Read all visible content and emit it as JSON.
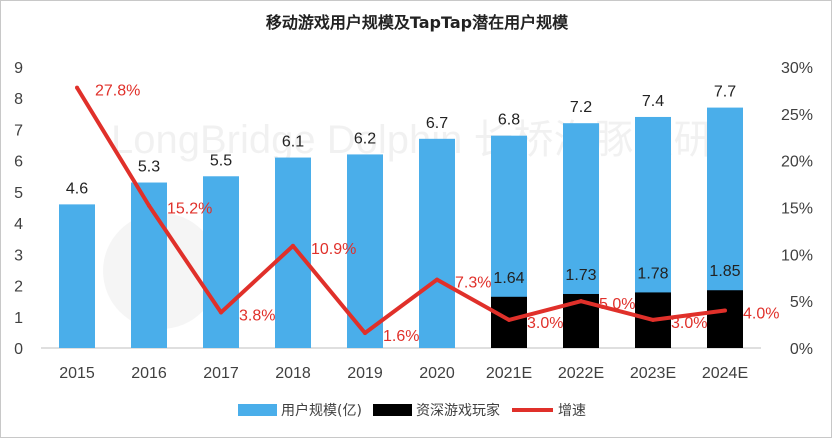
{
  "chart_data": {
    "type": "bar",
    "title": "移动游戏用户规模及TapTap潜在用户规模",
    "categories": [
      "2015",
      "2016",
      "2017",
      "2018",
      "2019",
      "2020",
      "2021E",
      "2022E",
      "2023E",
      "2024E"
    ],
    "series": [
      {
        "name": "用户规模(亿)",
        "kind": "bar",
        "axis": "left",
        "color": "#4aaeea",
        "values": [
          4.6,
          5.3,
          5.5,
          6.1,
          6.2,
          6.7,
          6.8,
          7.2,
          7.4,
          7.7
        ],
        "labels": [
          "4.6",
          "5.3",
          "5.5",
          "6.1",
          "6.2",
          "6.7",
          "6.8",
          "7.2",
          "7.4",
          "7.7"
        ]
      },
      {
        "name": "资深游戏玩家",
        "kind": "bar",
        "axis": "left",
        "color": "#000000",
        "values": [
          null,
          null,
          null,
          null,
          null,
          null,
          1.64,
          1.73,
          1.78,
          1.85
        ],
        "labels": [
          "",
          "",
          "",
          "",
          "",
          "",
          "1.64",
          "1.73",
          "1.78",
          "1.85"
        ]
      },
      {
        "name": "增速",
        "kind": "line",
        "axis": "right",
        "color": "#e0302a",
        "values": [
          27.8,
          15.2,
          3.8,
          10.9,
          1.6,
          7.3,
          3.0,
          5.0,
          3.0,
          4.0
        ],
        "labels": [
          "27.8%",
          "15.2%",
          "3.8%",
          "10.9%",
          "1.6%",
          "7.3%",
          "3.0%",
          "5.0%",
          "3.0%",
          "4.0%"
        ]
      }
    ],
    "left_axis": {
      "min": 0,
      "max": 9,
      "ticks": [
        "0",
        "1",
        "2",
        "3",
        "4",
        "5",
        "6",
        "7",
        "8",
        "9"
      ]
    },
    "right_axis": {
      "min": 0,
      "max": 30,
      "ticks": [
        "0%",
        "5%",
        "10%",
        "15%",
        "20%",
        "25%",
        "30%"
      ]
    },
    "legend_position": "bottom",
    "watermark": "LongBridge Dolphin 长桥海豚投研"
  }
}
